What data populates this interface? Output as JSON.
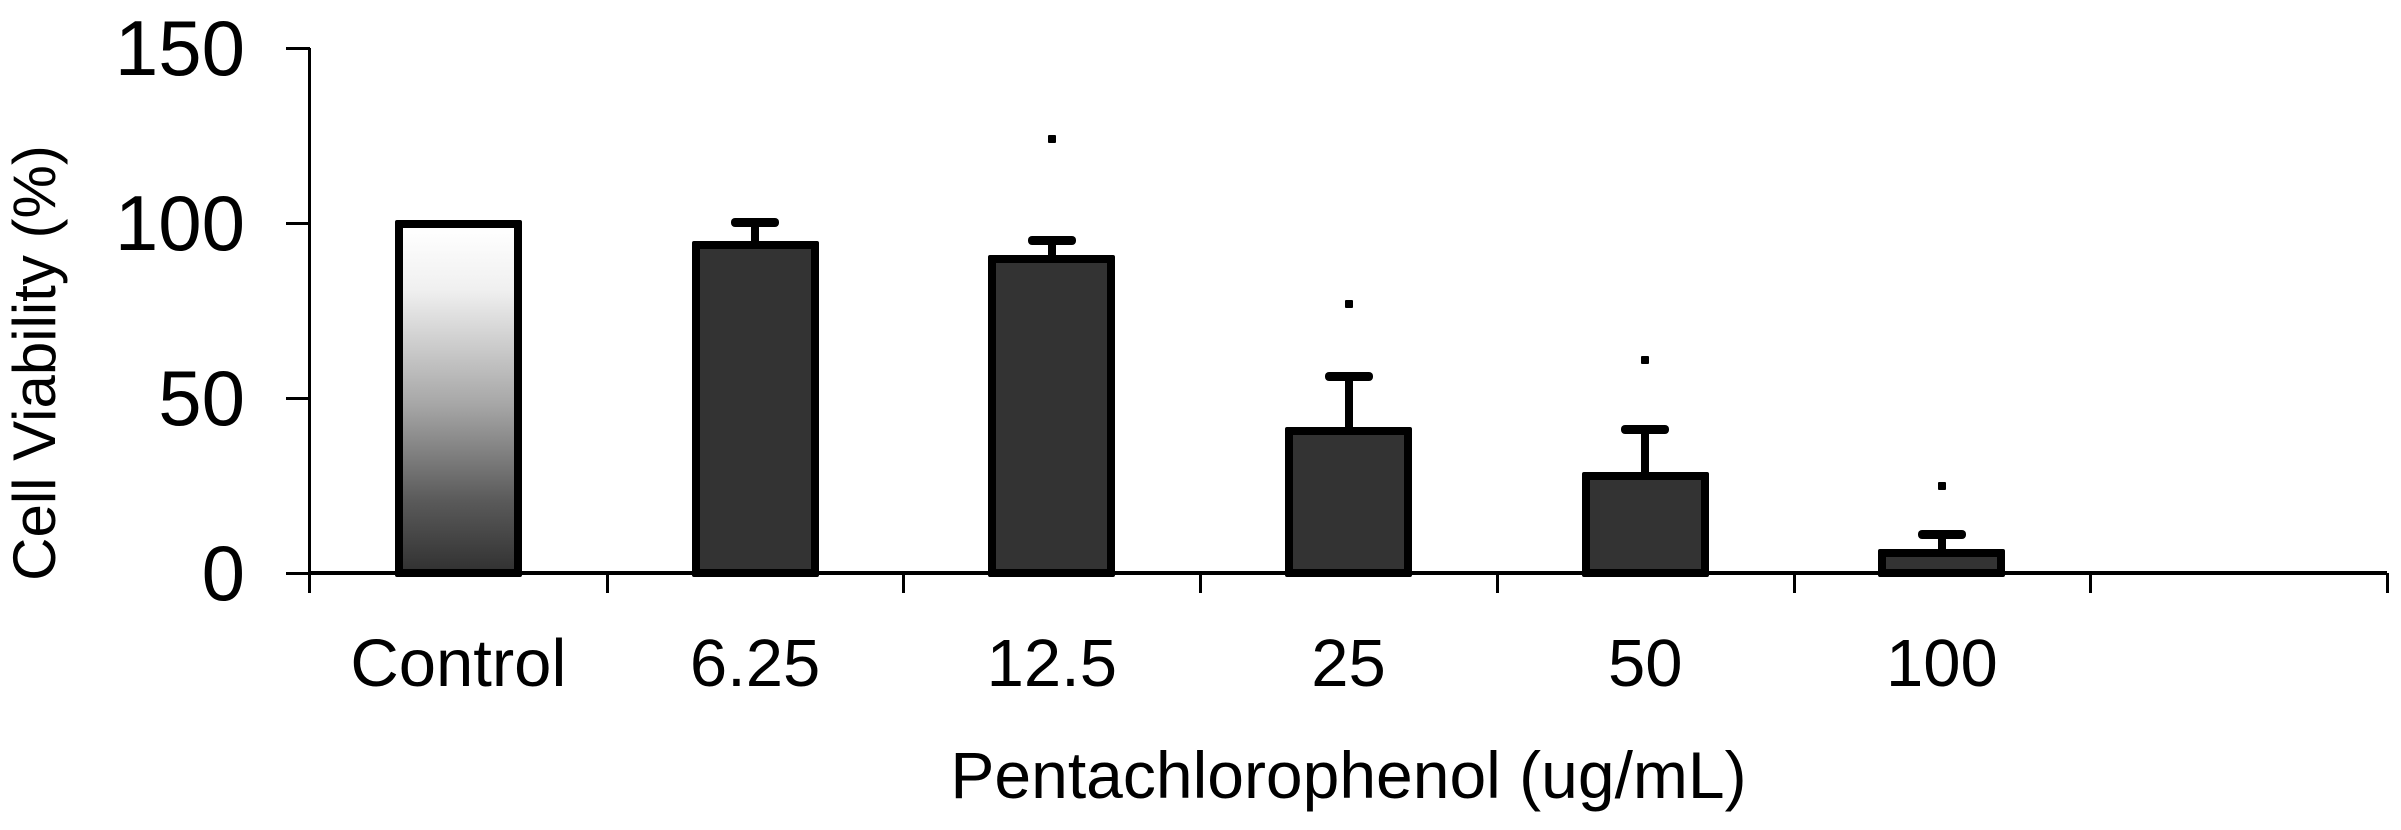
{
  "chart_data": {
    "type": "bar",
    "title": "",
    "xlabel": "Pentachlorophenol (ug/mL)",
    "ylabel": "Cell Viability (%)",
    "ylim": [
      0,
      150
    ],
    "yticks": [
      0,
      50,
      100,
      150
    ],
    "categories": [
      "Control",
      "6.25",
      "12.5",
      "25",
      "50",
      "100"
    ],
    "series": [
      {
        "name": "Cell Viability",
        "values": [
          100,
          94,
          90,
          41,
          28,
          6
        ],
        "error_upper": [
          0,
          6,
          5,
          15,
          13,
          5
        ]
      }
    ],
    "significance_dots": [
      null,
      null,
      124,
      77,
      61,
      25
    ],
    "grid": false,
    "legend": "none",
    "empty_trailing_slots": 1
  },
  "style": {
    "background": "#ffffff",
    "axis_color": "#000000",
    "bar_fill": "#333333",
    "bar_border": "#000000",
    "control_gradient_top": "#ffffff",
    "control_gradient_bottom": "#333333",
    "text_color": "#000000"
  }
}
